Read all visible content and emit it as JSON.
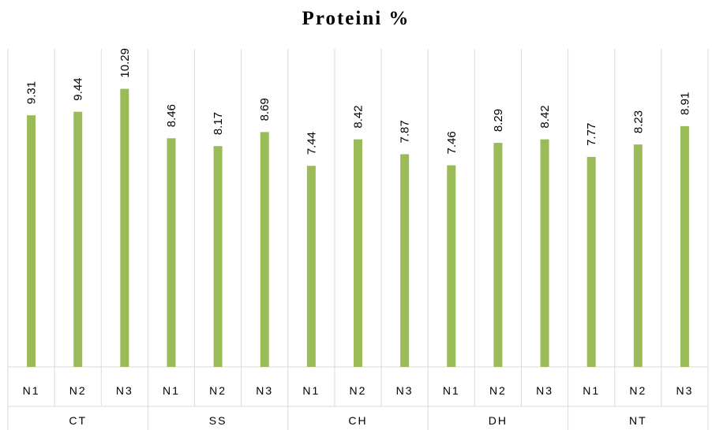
{
  "chart_data": {
    "type": "bar",
    "title": "Proteini %",
    "xlabel": "",
    "ylabel": "",
    "ylim": [
      0,
      12
    ],
    "grid": false,
    "legend": "none",
    "bar_color": "#9bbb59",
    "groups": [
      {
        "name": "CT",
        "categories": [
          "N1",
          "N2",
          "N3"
        ],
        "values": [
          9.31,
          9.44,
          10.29
        ]
      },
      {
        "name": "SS",
        "categories": [
          "N1",
          "N2",
          "N3"
        ],
        "values": [
          8.46,
          8.17,
          8.69
        ]
      },
      {
        "name": "CH",
        "categories": [
          "N1",
          "N2",
          "N3"
        ],
        "values": [
          7.44,
          8.42,
          7.87
        ]
      },
      {
        "name": "DH",
        "categories": [
          "N1",
          "N2",
          "N3"
        ],
        "values": [
          7.46,
          8.29,
          8.42
        ]
      },
      {
        "name": "NT",
        "categories": [
          "N1",
          "N2",
          "N3"
        ],
        "values": [
          7.77,
          8.23,
          8.91
        ]
      }
    ]
  }
}
